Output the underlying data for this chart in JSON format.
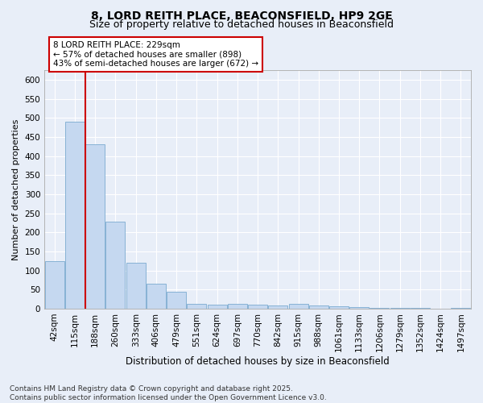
{
  "title1": "8, LORD REITH PLACE, BEACONSFIELD, HP9 2GE",
  "title2": "Size of property relative to detached houses in Beaconsfield",
  "xlabel": "Distribution of detached houses by size in Beaconsfield",
  "ylabel": "Number of detached properties",
  "bar_labels": [
    "42sqm",
    "115sqm",
    "188sqm",
    "260sqm",
    "333sqm",
    "406sqm",
    "479sqm",
    "551sqm",
    "624sqm",
    "697sqm",
    "770sqm",
    "842sqm",
    "915sqm",
    "988sqm",
    "1061sqm",
    "1133sqm",
    "1206sqm",
    "1279sqm",
    "1352sqm",
    "1424sqm",
    "1497sqm"
  ],
  "bar_values": [
    125,
    490,
    430,
    228,
    120,
    65,
    43,
    13,
    11,
    13,
    11,
    9,
    13,
    8,
    5,
    3,
    2,
    1,
    1,
    0,
    1
  ],
  "bar_color": "#c5d8f0",
  "bar_edge_color": "#7aaad0",
  "vline_x": 1.5,
  "vline_color": "#cc0000",
  "annotation_text": "8 LORD REITH PLACE: 229sqm\n← 57% of detached houses are smaller (898)\n43% of semi-detached houses are larger (672) →",
  "annotation_box_color": "#ffffff",
  "annotation_box_edge": "#cc0000",
  "ylim": [
    0,
    625
  ],
  "yticks": [
    0,
    50,
    100,
    150,
    200,
    250,
    300,
    350,
    400,
    450,
    500,
    550,
    600
  ],
  "background_color": "#e8eef8",
  "footer_text": "Contains HM Land Registry data © Crown copyright and database right 2025.\nContains public sector information licensed under the Open Government Licence v3.0.",
  "title1_fontsize": 10,
  "title2_fontsize": 9,
  "xlabel_fontsize": 8.5,
  "ylabel_fontsize": 8,
  "tick_fontsize": 7.5,
  "annotation_fontsize": 7.5,
  "footer_fontsize": 6.5
}
